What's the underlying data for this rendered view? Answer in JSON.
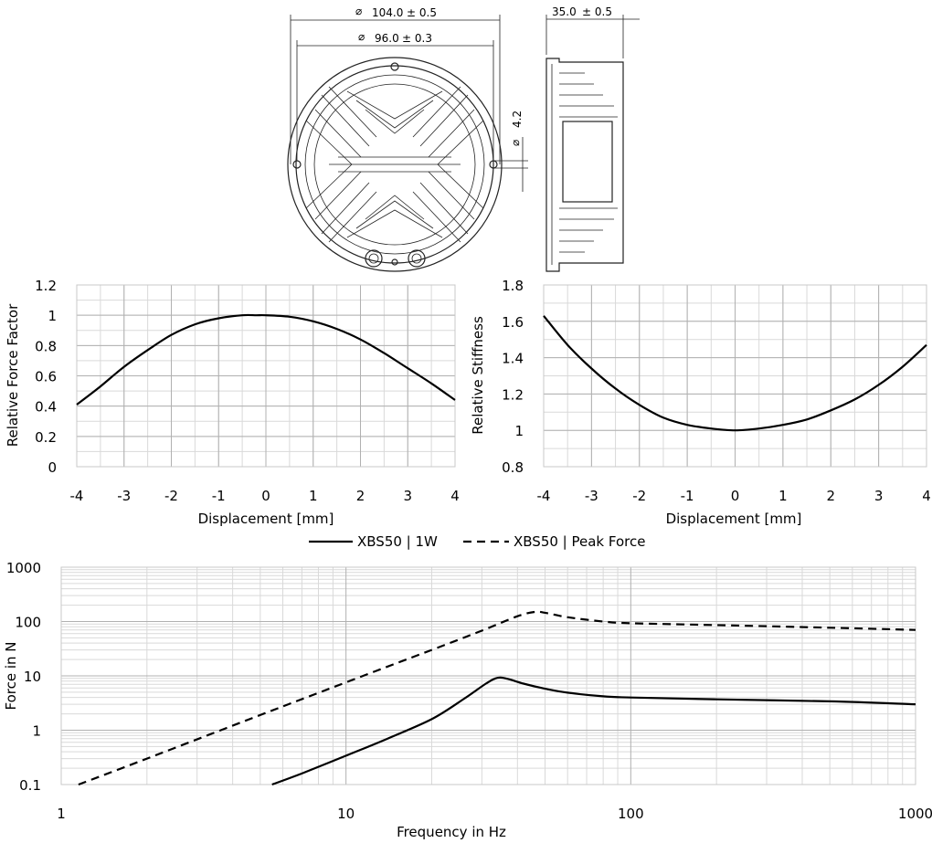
{
  "drawing": {
    "outer_diameter": "104.0",
    "outer_tol": "± 0.5",
    "inner_diameter": "96.0",
    "inner_tol": "± 0.3",
    "hole_diameter": "4.2",
    "depth": "35.0",
    "depth_tol": "± 0.5",
    "diameter_symbol": "⌀"
  },
  "chart_data": [
    {
      "type": "line",
      "xlabel": "Displacement  [mm]",
      "ylabel": "Relative Force Factor",
      "xlim": [
        -4,
        4
      ],
      "ylim": [
        0,
        1.2
      ],
      "xticks": [
        -4,
        -3,
        -2,
        -1,
        0,
        1,
        2,
        3,
        4
      ],
      "xtick_labels": [
        "-4",
        "-3",
        "-2",
        "-1",
        "0",
        "1",
        "2",
        "3",
        "4"
      ],
      "yticks": [
        0,
        0.2,
        0.4,
        0.6,
        0.8,
        1,
        1.2
      ],
      "ytick_labels": [
        "0",
        "0.2",
        "0.4",
        "0.6",
        "0.8",
        "1",
        "1.2"
      ],
      "grid": true,
      "series": [
        {
          "style": "solid",
          "x": [
            -4,
            -3.5,
            -3,
            -2.5,
            -2,
            -1.5,
            -1,
            -0.5,
            -0.2,
            0,
            0.5,
            1,
            1.5,
            2,
            2.5,
            3,
            3.5,
            4
          ],
          "y": [
            0.41,
            0.53,
            0.66,
            0.77,
            0.87,
            0.94,
            0.98,
            1.0,
            1.0,
            1.0,
            0.99,
            0.96,
            0.91,
            0.84,
            0.75,
            0.65,
            0.55,
            0.44
          ]
        }
      ]
    },
    {
      "type": "line",
      "xlabel": "Displacement  [mm]",
      "ylabel": "Relative Stiffness",
      "xlim": [
        -4,
        4
      ],
      "ylim": [
        0.8,
        1.8
      ],
      "xticks": [
        -4,
        -3,
        -2,
        -1,
        0,
        1,
        2,
        3,
        4
      ],
      "xtick_labels": [
        "-4",
        "-3",
        "-2",
        "-1",
        "0",
        "1",
        "2",
        "3",
        "4"
      ],
      "yticks": [
        0.8,
        1,
        1.2,
        1.4,
        1.6,
        1.8
      ],
      "ytick_labels": [
        "0.8",
        "1",
        "1.2",
        "1.4",
        "1.6",
        "1.8"
      ],
      "grid": true,
      "series": [
        {
          "style": "solid",
          "x": [
            -4,
            -3.5,
            -3,
            -2.5,
            -2,
            -1.5,
            -1,
            -0.5,
            0,
            0.5,
            1,
            1.5,
            2,
            2.5,
            3,
            3.5,
            4
          ],
          "y": [
            1.63,
            1.47,
            1.34,
            1.23,
            1.14,
            1.07,
            1.03,
            1.01,
            1.0,
            1.01,
            1.03,
            1.06,
            1.11,
            1.17,
            1.25,
            1.35,
            1.47
          ]
        }
      ]
    },
    {
      "type": "line",
      "xlabel": "Frequency in Hz",
      "ylabel": "Force in N",
      "xscale": "log",
      "yscale": "log",
      "xlim": [
        1,
        1000
      ],
      "ylim": [
        0.1,
        1000
      ],
      "xticks": [
        1,
        10,
        100,
        1000
      ],
      "xtick_labels": [
        "1",
        "10",
        "100",
        "1000"
      ],
      "yticks": [
        0.1,
        1,
        10,
        100,
        1000
      ],
      "ytick_labels": [
        "0.1",
        "1",
        "10",
        "100",
        "1000"
      ],
      "grid": true,
      "legend_position": "top-center",
      "series": [
        {
          "name": "XBS50 | 1W",
          "style": "solid",
          "x": [
            5.5,
            7,
            10,
            14,
            20,
            26,
            31,
            34,
            37,
            42,
            50,
            60,
            80,
            100,
            200,
            500,
            1000
          ],
          "y": [
            0.1,
            0.16,
            0.34,
            0.7,
            1.6,
            3.8,
            7.2,
            9.2,
            8.8,
            7.2,
            5.8,
            4.9,
            4.2,
            4.0,
            3.7,
            3.4,
            3.0
          ]
        },
        {
          "name": "XBS50 | Peak Force",
          "style": "dashed",
          "x": [
            1.15,
            2,
            5,
            10,
            20,
            30,
            40,
            46,
            50,
            60,
            80,
            100,
            200,
            500,
            1000
          ],
          "y": [
            0.1,
            0.3,
            1.9,
            7.6,
            30,
            68,
            125,
            150,
            145,
            120,
            100,
            93,
            86,
            77,
            70
          ]
        }
      ]
    }
  ]
}
